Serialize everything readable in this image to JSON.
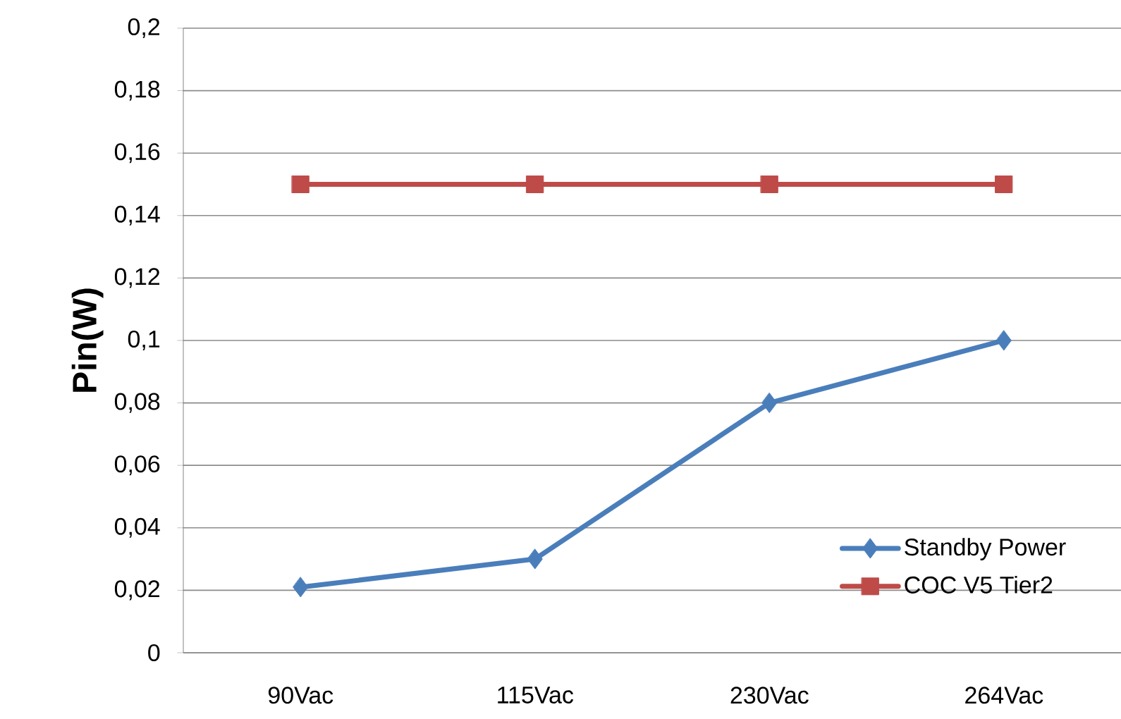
{
  "chart_data": {
    "type": "line",
    "ylabel": "Pin(W)",
    "categories": [
      "90Vac",
      "115Vac",
      "230Vac",
      "264Vac"
    ],
    "series": [
      {
        "name": "Standby Power",
        "color": "#4a7ebb",
        "marker": "diamond",
        "values": [
          0.021,
          0.03,
          0.08,
          0.1
        ]
      },
      {
        "name": "COC V5 Tier2",
        "color": "#be4b48",
        "marker": "square",
        "values": [
          0.15,
          0.15,
          0.15,
          0.15
        ]
      }
    ],
    "ylim": [
      0,
      0.2
    ],
    "yticks": [
      {
        "value": 0,
        "label": "0"
      },
      {
        "value": 0.02,
        "label": "0,02"
      },
      {
        "value": 0.04,
        "label": "0,04"
      },
      {
        "value": 0.06,
        "label": "0,06"
      },
      {
        "value": 0.08,
        "label": "0,08"
      },
      {
        "value": 0.1,
        "label": "0,1"
      },
      {
        "value": 0.12,
        "label": "0,12"
      },
      {
        "value": 0.14,
        "label": "0,14"
      },
      {
        "value": 0.16,
        "label": "0,16"
      },
      {
        "value": 0.18,
        "label": "0,18"
      },
      {
        "value": 0.2,
        "label": "0,2"
      }
    ],
    "grid": "y",
    "legend": "bottom right",
    "line_style": "solid"
  }
}
